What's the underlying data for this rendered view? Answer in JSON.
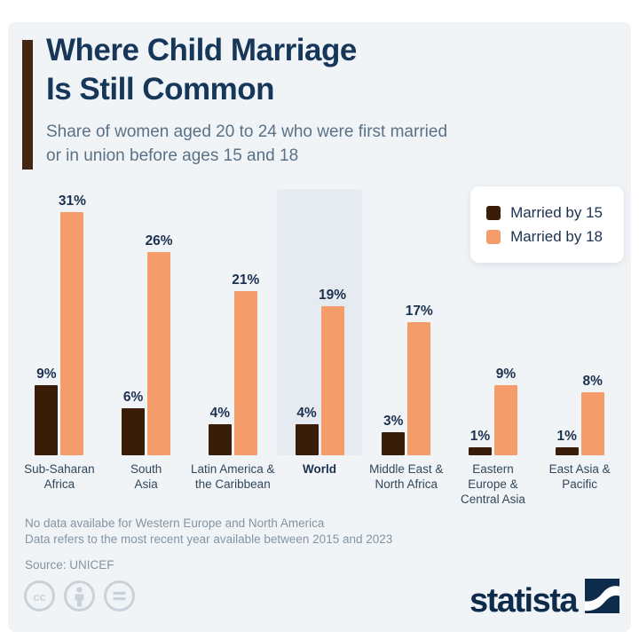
{
  "header": {
    "title_line1": "Where Child Marriage",
    "title_line2": "Is Still Common",
    "subtitle_line1": "Share of women aged 20 to 24 who were first married",
    "subtitle_line2": "or in union before ages 15 and 18"
  },
  "chart_data": {
    "type": "bar",
    "title": "Where Child Marriage Is Still Common",
    "subtitle": "Share of women aged 20 to 24 who were first married or in union before ages 15 and 18",
    "categories": [
      "Sub-Saharan Africa",
      "South Asia",
      "Latin America & the Caribbean",
      "World",
      "Middle East & North Africa",
      "Eastern Europe & Central Asia",
      "East Asia & Pacific"
    ],
    "label_lines": [
      [
        "Sub-Saharan",
        "Africa"
      ],
      [
        "South",
        "Asia"
      ],
      [
        "Latin America &",
        "the Caribbean"
      ],
      [
        "World"
      ],
      [
        "Middle East &",
        "North Africa"
      ],
      [
        "Eastern",
        "Europe &",
        "Central Asia"
      ],
      [
        "East Asia &",
        "Pacific"
      ]
    ],
    "series": [
      {
        "name": "Married by 15",
        "color": "#3A1D09",
        "values": [
          9,
          6,
          4,
          4,
          3,
          1,
          1
        ]
      },
      {
        "name": "Married by 18",
        "color": "#F59C6B",
        "values": [
          31,
          26,
          21,
          19,
          17,
          9,
          8
        ]
      }
    ],
    "value_suffix": "%",
    "highlighted_category": "World",
    "highlight_color": "#E6EAF1",
    "ylim": [
      0,
      34
    ],
    "grid": false,
    "legend_position": "top-right"
  },
  "footnotes": {
    "line1": "No data availabe for Western Europe and North America",
    "line2": "Data refers to the most recent year available between 2015 and 2023",
    "source": "Source: UNICEF"
  },
  "branding": {
    "logo_text": "statista",
    "license_icons": [
      "cc-icon",
      "attribution-icon",
      "nd-icon"
    ]
  },
  "colors": {
    "background": "#F0F4F7",
    "title": "#16365A",
    "subtitle": "#5A7186",
    "accent_bar": "#452610",
    "value_label": "#1B3150",
    "footnote": "#8494A2",
    "logo": "#0D2B4A",
    "license_icon": "#C9D1D9"
  }
}
